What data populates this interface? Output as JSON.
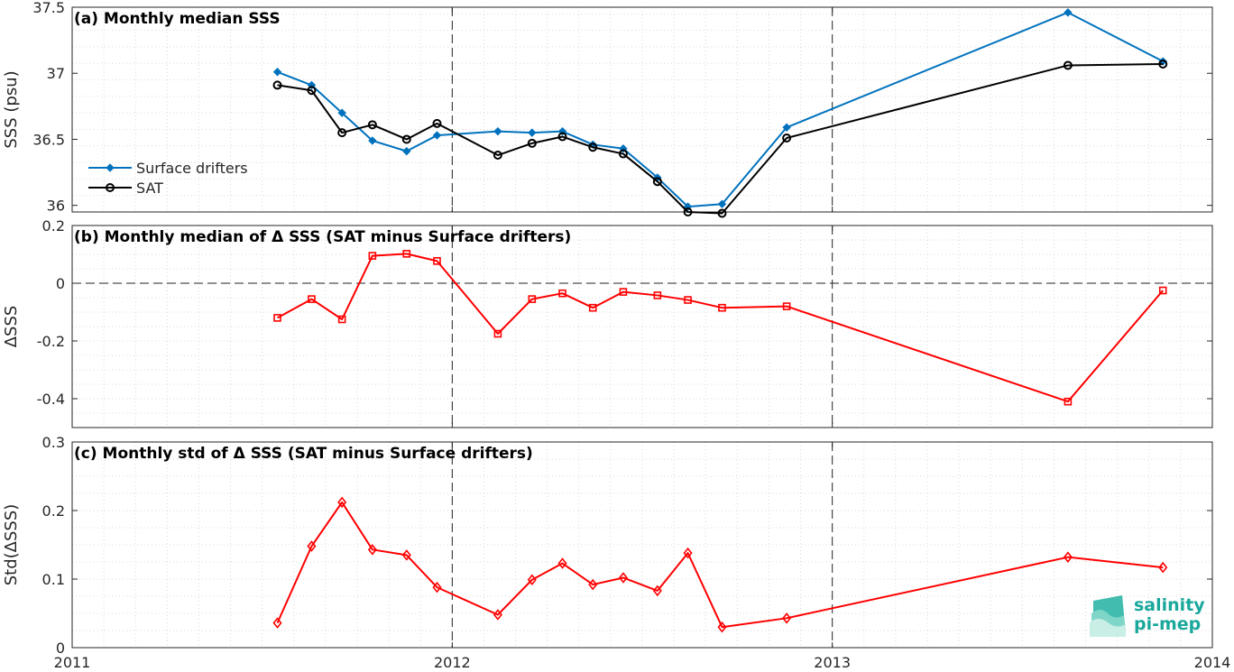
{
  "logo": {
    "line1": "salinity",
    "line2": "pi-mep",
    "color": "#1aa89c"
  },
  "x_axis": {
    "range": [
      2011.0,
      2014.0
    ],
    "major_ticks": [
      2011,
      2012,
      2013,
      2014
    ],
    "tick_labels": [
      "2011",
      "2012",
      "2013",
      "2014"
    ],
    "minor_grid_step_months": 1,
    "year_dividers": [
      2012,
      2013
    ]
  },
  "chart_data": [
    {
      "type": "line",
      "title": "(a) Monthly median SSS",
      "ylabel": "SSS (psu)",
      "ylim": [
        35.95,
        37.5
      ],
      "yticks": [
        36,
        36.5,
        37,
        37.5
      ],
      "ytick_labels": [
        "36",
        "36.5",
        "37",
        "37.5"
      ],
      "grid": true,
      "legend": "left",
      "x": [
        2011.54,
        2011.63,
        2011.71,
        2011.79,
        2011.88,
        2011.96,
        2012.12,
        2012.21,
        2012.29,
        2012.37,
        2012.45,
        2012.54,
        2012.62,
        2012.71,
        2012.88,
        2013.62,
        2013.87
      ],
      "series": [
        {
          "name": "Surface drifters",
          "color": "#0072bd",
          "marker": "diamond",
          "values": [
            37.01,
            36.91,
            36.7,
            36.49,
            36.41,
            36.53,
            36.56,
            36.55,
            36.56,
            36.46,
            36.43,
            36.21,
            35.99,
            36.01,
            36.59,
            37.46,
            37.09
          ]
        },
        {
          "name": "SAT",
          "color": "#000000",
          "marker": "circle",
          "values": [
            36.91,
            36.87,
            36.55,
            36.61,
            36.5,
            36.62,
            36.38,
            36.47,
            36.52,
            36.44,
            36.39,
            36.18,
            35.95,
            35.94,
            36.51,
            37.06,
            37.07
          ]
        }
      ]
    },
    {
      "type": "line",
      "title": "(b) Monthly median of Δ SSS (SAT minus Surface drifters)",
      "ylabel": "ΔSSS",
      "ylim": [
        -0.5,
        0.2
      ],
      "yticks": [
        -0.4,
        -0.2,
        0,
        0.2
      ],
      "ytick_labels": [
        "-0.4",
        "-0.2",
        "0",
        "0.2"
      ],
      "zero_line": true,
      "grid": true,
      "x": [
        2011.54,
        2011.63,
        2011.71,
        2011.79,
        2011.88,
        2011.96,
        2012.12,
        2012.21,
        2012.29,
        2012.37,
        2012.45,
        2012.54,
        2012.62,
        2012.71,
        2012.88,
        2013.62,
        2013.87
      ],
      "series": [
        {
          "color": "#ff0000",
          "marker": "square",
          "values": [
            -0.12,
            -0.055,
            -0.125,
            0.095,
            0.102,
            0.077,
            -0.175,
            -0.055,
            -0.035,
            -0.085,
            -0.03,
            -0.042,
            -0.058,
            -0.085,
            -0.08,
            -0.41,
            -0.025
          ]
        }
      ]
    },
    {
      "type": "line",
      "title": "(c) Monthly std of Δ SSS (SAT minus Surface drifters)",
      "ylabel": "Std(ΔSSS)",
      "ylim": [
        0,
        0.3
      ],
      "yticks": [
        0,
        0.1,
        0.2,
        0.3
      ],
      "ytick_labels": [
        "0",
        "0.1",
        "0.2",
        "0.3"
      ],
      "grid": true,
      "x": [
        2011.54,
        2011.63,
        2011.71,
        2011.79,
        2011.88,
        2011.96,
        2012.12,
        2012.21,
        2012.29,
        2012.37,
        2012.45,
        2012.54,
        2012.62,
        2012.71,
        2012.88,
        2013.62,
        2013.87
      ],
      "series": [
        {
          "color": "#ff0000",
          "marker": "diamond-open",
          "values": [
            0.036,
            0.148,
            0.212,
            0.143,
            0.135,
            0.088,
            0.048,
            0.099,
            0.123,
            0.092,
            0.102,
            0.083,
            0.138,
            0.03,
            0.043,
            0.132,
            0.117
          ]
        }
      ]
    }
  ]
}
